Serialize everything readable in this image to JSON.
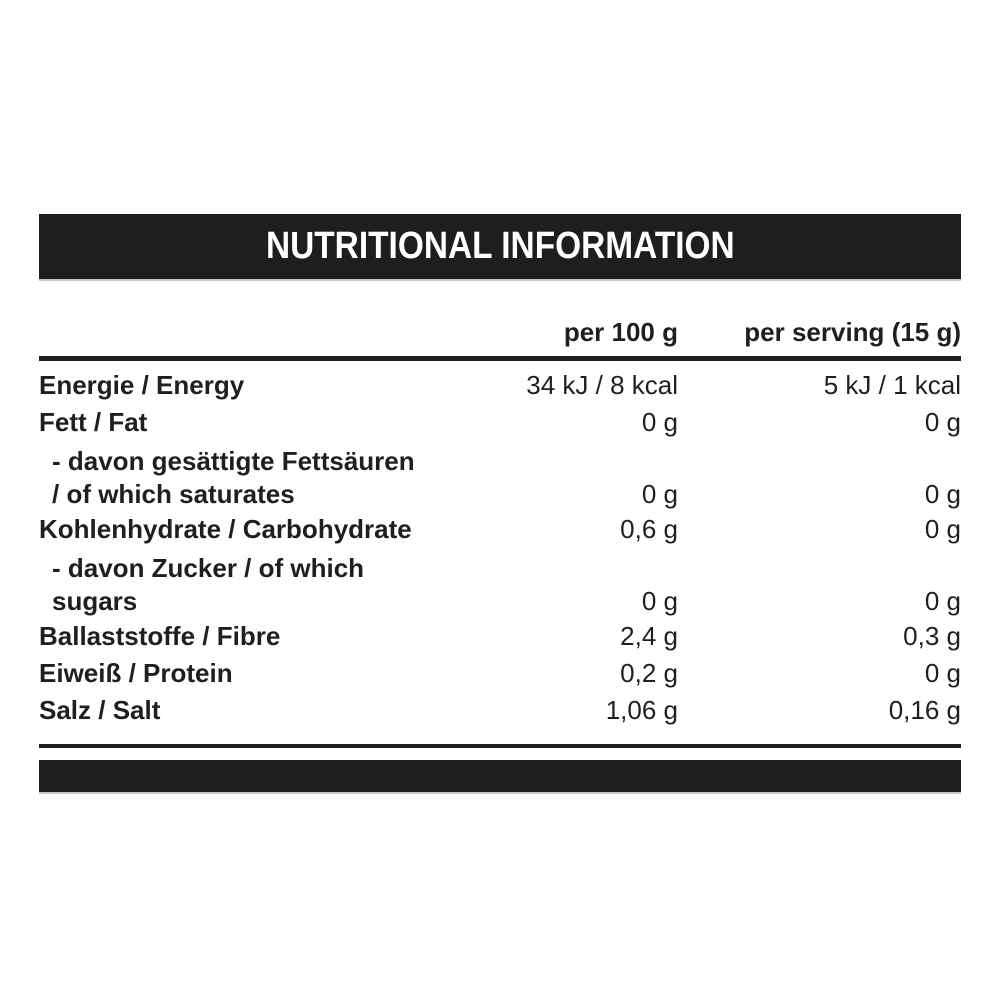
{
  "header": {
    "title": "NUTRITIONAL INFORMATION"
  },
  "table": {
    "columns": [
      "per 100 g",
      "per serving (15 g)"
    ],
    "rows": [
      {
        "label_lines": [
          "Energie / Energy"
        ],
        "per_100g": "34 kJ / 8 kcal",
        "per_serving": "5 kJ / 1 kcal",
        "indent": false
      },
      {
        "label_lines": [
          "Fett / Fat"
        ],
        "per_100g": "0 g",
        "per_serving": "0 g",
        "indent": false
      },
      {
        "label_lines": [
          "- davon gesättigte Fettsäuren",
          "/ of which saturates"
        ],
        "per_100g": "0 g",
        "per_serving": "0 g",
        "indent": true
      },
      {
        "label_lines": [
          "Kohlenhydrate / Carbohydrate"
        ],
        "per_100g": "0,6 g",
        "per_serving": "0 g",
        "indent": false
      },
      {
        "label_lines": [
          "- davon Zucker / of which",
          "sugars"
        ],
        "per_100g": "0 g",
        "per_serving": "0 g",
        "indent": true
      },
      {
        "label_lines": [
          "Ballaststoffe / Fibre"
        ],
        "per_100g": "2,4 g",
        "per_serving": "0,3 g",
        "indent": false
      },
      {
        "label_lines": [
          "Eiweiß / Protein"
        ],
        "per_100g": "0,2 g",
        "per_serving": "0 g",
        "indent": false
      },
      {
        "label_lines": [
          "Salz / Salt"
        ],
        "per_100g": "1,06 g",
        "per_serving": "0,16 g",
        "indent": false
      }
    ]
  },
  "colors": {
    "bar": "#201d1e",
    "text": "#211e1f",
    "background": "#ffffff"
  }
}
